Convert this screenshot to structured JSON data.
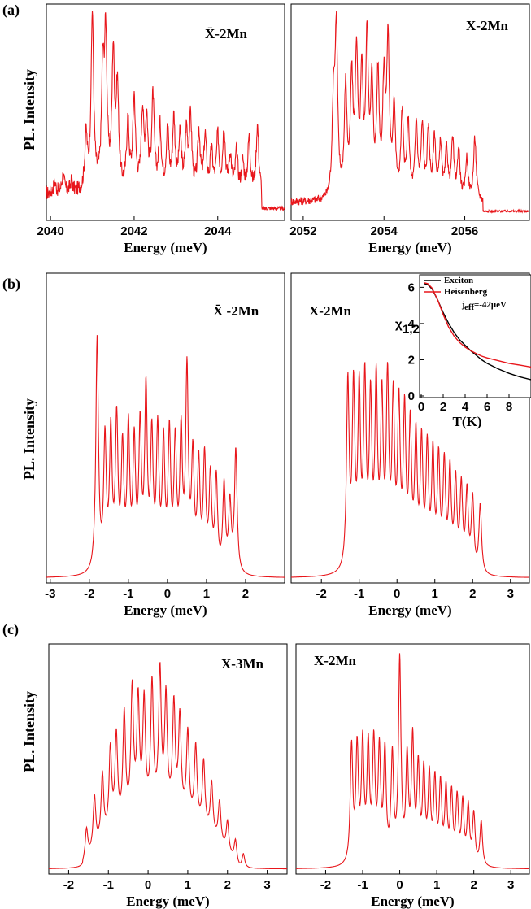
{
  "colors": {
    "spectrum": "#e8161b",
    "exciton": "#000000",
    "heisenberg": "#e8161b",
    "frame": "#000000"
  },
  "panel_labels": [
    "(a)",
    "(b)",
    "(c)"
  ],
  "row_ylabels": [
    "PL. Intensity",
    "PL. Intensity",
    "PL. Intensity"
  ],
  "chart_data": [
    {
      "id": "a-left",
      "type": "line",
      "row": 0,
      "col": 0,
      "annotation": "X̄-2Mn",
      "xlabel": "Energy (meV)",
      "ylabel": "PL. Intensity",
      "xlim": [
        2039.9,
        2045.6
      ],
      "xticks": [
        2040,
        2042,
        2044
      ],
      "xtick_labels": [
        "2040",
        "2042",
        "2044"
      ],
      "baseline": 0.12,
      "noise": 0.04,
      "cutoff": 2045.05,
      "peaks": [
        [
          2040.1,
          0.06
        ],
        [
          2040.3,
          0.1
        ],
        [
          2040.5,
          0.06
        ],
        [
          2040.85,
          0.3
        ],
        [
          2041.0,
          1.0
        ],
        [
          2041.25,
          0.62
        ],
        [
          2041.32,
          0.82
        ],
        [
          2041.5,
          0.75
        ],
        [
          2041.6,
          0.55
        ],
        [
          2041.85,
          0.38
        ],
        [
          2042.0,
          0.52
        ],
        [
          2042.2,
          0.43
        ],
        [
          2042.3,
          0.38
        ],
        [
          2042.45,
          0.52
        ],
        [
          2042.62,
          0.35
        ],
        [
          2042.8,
          0.34
        ],
        [
          2042.95,
          0.4
        ],
        [
          2043.1,
          0.3
        ],
        [
          2043.25,
          0.32
        ],
        [
          2043.35,
          0.4
        ],
        [
          2043.55,
          0.33
        ],
        [
          2043.7,
          0.3
        ],
        [
          2043.85,
          0.22
        ],
        [
          2044.0,
          0.3
        ],
        [
          2044.15,
          0.35
        ],
        [
          2044.3,
          0.2
        ],
        [
          2044.45,
          0.22
        ],
        [
          2044.6,
          0.16
        ],
        [
          2044.75,
          0.3
        ],
        [
          2044.95,
          0.38
        ]
      ]
    },
    {
      "id": "a-right",
      "type": "line",
      "row": 0,
      "col": 1,
      "annotation": "X-2Mn",
      "xlabel": "Energy (meV)",
      "ylabel": "",
      "xlim": [
        2051.7,
        2057.6
      ],
      "xticks": [
        2052,
        2054,
        2056
      ],
      "xtick_labels": [
        "2052",
        "2054",
        "2056"
      ],
      "baseline": 0.08,
      "noise": 0.025,
      "cutoff": 2056.45,
      "peaks": [
        [
          2052.75,
          0.55
        ],
        [
          2052.82,
          1.0
        ],
        [
          2053.05,
          0.66
        ],
        [
          2053.2,
          0.7
        ],
        [
          2053.32,
          0.85
        ],
        [
          2053.45,
          0.7
        ],
        [
          2053.58,
          0.95
        ],
        [
          2053.7,
          0.65
        ],
        [
          2053.85,
          0.72
        ],
        [
          2054.0,
          0.68
        ],
        [
          2054.1,
          0.93
        ],
        [
          2054.25,
          0.55
        ],
        [
          2054.45,
          0.5
        ],
        [
          2054.6,
          0.45
        ],
        [
          2054.8,
          0.45
        ],
        [
          2054.95,
          0.42
        ],
        [
          2055.1,
          0.4
        ],
        [
          2055.25,
          0.36
        ],
        [
          2055.4,
          0.33
        ],
        [
          2055.55,
          0.3
        ],
        [
          2055.7,
          0.35
        ],
        [
          2055.85,
          0.3
        ],
        [
          2056.05,
          0.25
        ],
        [
          2056.25,
          0.38
        ]
      ]
    },
    {
      "id": "b-left",
      "type": "line",
      "row": 1,
      "col": 0,
      "annotation": "X̄ -2Mn",
      "xlabel": "Energy (meV)",
      "ylabel": "PL. Intensity",
      "xlim": [
        -3.1,
        3.0
      ],
      "xticks": [
        -3,
        -2,
        -1,
        0,
        1,
        2
      ],
      "xtick_labels": [
        "-3",
        "-2",
        "-1",
        "0",
        "1",
        "2"
      ],
      "baseline": 0.0,
      "noise": 0.0,
      "cutoff": 3.0,
      "peaks": [
        [
          -1.8,
          0.76
        ],
        [
          -1.6,
          0.42
        ],
        [
          -1.45,
          0.44
        ],
        [
          -1.3,
          0.48
        ],
        [
          -1.15,
          0.38
        ],
        [
          -1.0,
          0.45
        ],
        [
          -0.85,
          0.4
        ],
        [
          -0.7,
          0.45
        ],
        [
          -0.55,
          0.57
        ],
        [
          -0.4,
          0.42
        ],
        [
          -0.25,
          0.44
        ],
        [
          -0.1,
          0.4
        ],
        [
          0.05,
          0.43
        ],
        [
          0.2,
          0.4
        ],
        [
          0.35,
          0.43
        ],
        [
          0.5,
          0.64
        ],
        [
          0.65,
          0.36
        ],
        [
          0.8,
          0.34
        ],
        [
          0.95,
          0.36
        ],
        [
          1.1,
          0.3
        ],
        [
          1.25,
          0.3
        ],
        [
          1.45,
          0.28
        ],
        [
          1.6,
          0.22
        ],
        [
          1.75,
          0.4
        ]
      ]
    },
    {
      "id": "b-right",
      "type": "line",
      "row": 1,
      "col": 1,
      "annotation": "X-2Mn",
      "xlabel": "Energy (meV)",
      "ylabel": "",
      "xlim": [
        -2.8,
        3.5
      ],
      "xticks": [
        -2,
        -1,
        0,
        1,
        2,
        3
      ],
      "xtick_labels": [
        "-2",
        "-1",
        "0",
        "1",
        "2",
        "3"
      ],
      "baseline": 0.0,
      "noise": 0.0,
      "cutoff": 3.5,
      "peaks": [
        [
          -1.3,
          0.76
        ],
        [
          -1.15,
          0.72
        ],
        [
          -1.0,
          0.7
        ],
        [
          -0.85,
          0.74
        ],
        [
          -0.7,
          0.66
        ],
        [
          -0.55,
          0.73
        ],
        [
          -0.4,
          0.66
        ],
        [
          -0.25,
          0.74
        ],
        [
          -0.1,
          0.66
        ],
        [
          0.05,
          0.64
        ],
        [
          0.2,
          0.62
        ],
        [
          0.35,
          0.56
        ],
        [
          0.5,
          0.52
        ],
        [
          0.65,
          0.5
        ],
        [
          0.8,
          0.48
        ],
        [
          0.95,
          0.46
        ],
        [
          1.1,
          0.44
        ],
        [
          1.25,
          0.42
        ],
        [
          1.4,
          0.4
        ],
        [
          1.55,
          0.36
        ],
        [
          1.7,
          0.34
        ],
        [
          1.85,
          0.32
        ],
        [
          2.0,
          0.3
        ],
        [
          2.2,
          0.28
        ]
      ]
    },
    {
      "id": "b-inset",
      "type": "line",
      "row": 1,
      "col": 1,
      "xlabel": "T(K)",
      "ylabel": "χ",
      "ylabel_sub": "1,2",
      "xlim": [
        0,
        10
      ],
      "ylim": [
        0,
        6.6
      ],
      "xticks": [
        0,
        2,
        4,
        6,
        8
      ],
      "xtick_labels": [
        "0",
        "2",
        "4",
        "6",
        "8"
      ],
      "yticks": [
        0,
        2,
        4,
        6
      ],
      "ytick_labels": [
        "0",
        "2",
        "4",
        "6"
      ],
      "legend": [
        "Exciton",
        "Heisenberg"
      ],
      "legend_note": "j",
      "legend_note_sub": "eff",
      "legend_note_value": "=-42μeV",
      "series": [
        {
          "name": "Exciton",
          "x": [
            0.3,
            0.6,
            1,
            1.5,
            2,
            2.5,
            3,
            3.5,
            4,
            4.5,
            5,
            5.5,
            6,
            7,
            8,
            9,
            10
          ],
          "y": [
            6.2,
            6.15,
            5.9,
            5.3,
            4.6,
            4.0,
            3.5,
            3.1,
            2.8,
            2.5,
            2.25,
            2.0,
            1.8,
            1.5,
            1.25,
            1.05,
            0.9
          ]
        },
        {
          "name": "Heisenberg",
          "x": [
            0.3,
            0.6,
            1,
            1.5,
            2,
            2.5,
            3,
            3.5,
            4,
            4.5,
            5,
            5.5,
            6,
            7,
            8,
            9,
            10
          ],
          "y": [
            6.25,
            6.2,
            5.95,
            5.3,
            4.5,
            3.8,
            3.3,
            2.95,
            2.7,
            2.5,
            2.35,
            2.2,
            2.1,
            1.95,
            1.8,
            1.7,
            1.6
          ]
        }
      ]
    },
    {
      "id": "c-left",
      "type": "line",
      "row": 2,
      "col": 0,
      "annotation": "X-3Mn",
      "xlabel": "Energy (meV)",
      "ylabel": "PL. Intensity",
      "xlim": [
        -2.5,
        3.5
      ],
      "xticks": [
        -2,
        -1,
        0,
        1,
        2,
        3
      ],
      "xtick_labels": [
        "-2",
        "-1",
        "0",
        "1",
        "2",
        "3"
      ],
      "baseline": 0.0,
      "noise": 0.0,
      "cutoff": 3.5,
      "peaks": [
        [
          -1.55,
          0.22
        ],
        [
          -1.35,
          0.38
        ],
        [
          -1.15,
          0.47
        ],
        [
          -0.95,
          0.6
        ],
        [
          -0.8,
          0.66
        ],
        [
          -0.6,
          0.78
        ],
        [
          -0.4,
          0.92
        ],
        [
          -0.25,
          0.82
        ],
        [
          -0.1,
          0.8
        ],
        [
          0.1,
          0.92
        ],
        [
          0.3,
          1.0
        ],
        [
          0.45,
          0.82
        ],
        [
          0.65,
          0.78
        ],
        [
          0.8,
          0.7
        ],
        [
          1.0,
          0.62
        ],
        [
          1.2,
          0.55
        ],
        [
          1.4,
          0.48
        ],
        [
          1.6,
          0.38
        ],
        [
          1.8,
          0.3
        ],
        [
          2.0,
          0.22
        ],
        [
          2.2,
          0.16
        ],
        [
          2.4,
          0.1
        ]
      ],
      "envelope": {
        "center": 0.3,
        "width": 2.0,
        "amp": 0.72,
        "lo": -1.65,
        "hi": 2.5
      }
    },
    {
      "id": "c-right",
      "type": "line",
      "row": 2,
      "col": 1,
      "annotation": "X-2Mn",
      "xlabel": "Energy (meV)",
      "ylabel": "",
      "xlim": [
        -2.8,
        3.5
      ],
      "xticks": [
        -2,
        -1,
        0,
        1,
        2,
        3
      ],
      "xtick_labels": [
        "-2",
        "-1",
        "0",
        "1",
        "2",
        "3"
      ],
      "baseline": 0.0,
      "noise": 0.0,
      "cutoff": 3.5,
      "peaks": [
        [
          -1.3,
          0.58
        ],
        [
          -1.15,
          0.56
        ],
        [
          -1.0,
          0.58
        ],
        [
          -0.85,
          0.56
        ],
        [
          -0.7,
          0.58
        ],
        [
          -0.55,
          0.54
        ],
        [
          -0.4,
          0.54
        ],
        [
          -0.2,
          0.52
        ],
        [
          0.0,
          1.0
        ],
        [
          0.2,
          0.5
        ],
        [
          0.35,
          0.6
        ],
        [
          0.5,
          0.46
        ],
        [
          0.65,
          0.44
        ],
        [
          0.8,
          0.42
        ],
        [
          0.95,
          0.4
        ],
        [
          1.1,
          0.38
        ],
        [
          1.25,
          0.36
        ],
        [
          1.4,
          0.34
        ],
        [
          1.55,
          0.32
        ],
        [
          1.7,
          0.3
        ],
        [
          1.85,
          0.28
        ],
        [
          2.0,
          0.25
        ],
        [
          2.2,
          0.22
        ]
      ]
    }
  ]
}
